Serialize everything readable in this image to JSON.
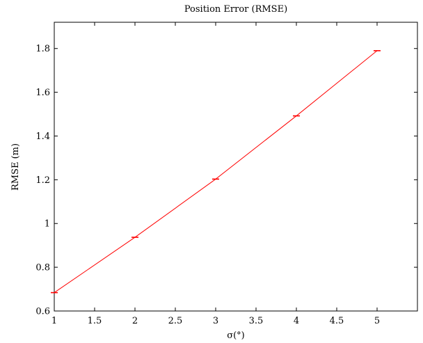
{
  "chart_data": {
    "type": "line",
    "title": "Position Error (RMSE)",
    "xlabel": "σ(°)",
    "ylabel": "RMSE (m)",
    "xlim": [
      1,
      5.5
    ],
    "ylim": [
      0.6,
      1.92
    ],
    "x_ticks": [
      1,
      1.5,
      2,
      2.5,
      3,
      3.5,
      4,
      4.5,
      5
    ],
    "x_tick_labels": [
      "1",
      "1.5",
      "2",
      "2.5",
      "3",
      "3.5",
      "4",
      "4.5",
      "5"
    ],
    "y_ticks": [
      0.6,
      0.8,
      1.0,
      1.2,
      1.4,
      1.6,
      1.8
    ],
    "y_tick_labels": [
      "0.6",
      "0.8",
      "1",
      "1.2",
      "1.4",
      "1.6",
      "1.8"
    ],
    "grid": false,
    "series": [
      {
        "color": "#ff0000",
        "points": [
          {
            "x": 1,
            "y": 0.684
          },
          {
            "x": 2,
            "y": 0.937
          },
          {
            "x": 3,
            "y": 1.203
          },
          {
            "x": 4,
            "y": 1.492
          },
          {
            "x": 5,
            "y": 1.79
          }
        ],
        "error_bars": true
      }
    ]
  }
}
